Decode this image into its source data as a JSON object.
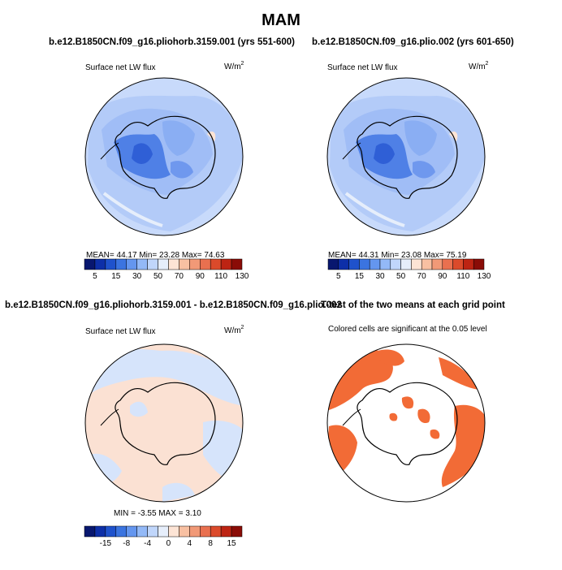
{
  "page": {
    "title": "MAM"
  },
  "panels": [
    {
      "title": "b.e12.B1850CN.f09_g16.pliohorb.3159.001 (yrs 551-600)",
      "left_label": "Surface net LW flux",
      "units_base": "W/m",
      "units_exp": "2",
      "stats_text": "MEAN=  44.17    Min=  23.28    Max=  74.63",
      "colorbar": {
        "colors": [
          "#08176f",
          "#0d2fa8",
          "#1f52cc",
          "#3b74e0",
          "#6496ef",
          "#93b9f7",
          "#c0d6fb",
          "#e6eefb",
          "#fde4d5",
          "#f8c0a2",
          "#f19977",
          "#e9704f",
          "#db4a2b",
          "#bd2413",
          "#8a0c07"
        ],
        "labels": [
          "5",
          "15",
          "30",
          "50",
          "70",
          "90",
          "110",
          "130"
        ]
      }
    },
    {
      "title": "b.e12.B1850CN.f09_g16.plio.002 (yrs 601-650)",
      "left_label": "Surface net LW flux",
      "units_base": "W/m",
      "units_exp": "2",
      "stats_text": "MEAN=  44.31    Min=  23.08    Max=  75.19",
      "colorbar": {
        "colors": [
          "#08176f",
          "#0d2fa8",
          "#1f52cc",
          "#3b74e0",
          "#6496ef",
          "#93b9f7",
          "#c0d6fb",
          "#e6eefb",
          "#fde4d5",
          "#f8c0a2",
          "#f19977",
          "#e9704f",
          "#db4a2b",
          "#bd2413",
          "#8a0c07"
        ],
        "labels": [
          "5",
          "15",
          "30",
          "50",
          "70",
          "90",
          "110",
          "130"
        ]
      }
    },
    {
      "title": "b.e12.B1850CN.f09_g16.pliohorb.3159.001 - b.e12.B1850CN.f09_g16.plio.002",
      "left_label": "Surface net LW flux",
      "units_base": "W/m",
      "units_exp": "2",
      "stats_text": "MIN =   -3.55  MAX =    3.10",
      "colorbar": {
        "colors": [
          "#08176f",
          "#0d2fa8",
          "#1f52cc",
          "#3b74e0",
          "#6496ef",
          "#93b9f7",
          "#c0d6fb",
          "#e6eefb",
          "#fde4d5",
          "#f8c0a2",
          "#f19977",
          "#e9704f",
          "#db4a2b",
          "#bd2413",
          "#8a0c07"
        ],
        "labels": [
          "-15",
          "-8",
          "-4",
          "0",
          "4",
          "8",
          "15"
        ]
      }
    },
    {
      "title": "T-test of the two means at each grid point",
      "subtitle": "Colored cells are significant at the 0.05 level"
    }
  ],
  "colors": {
    "ocean_base": "#c8dafb",
    "ocean_mid": "#a7c3f7",
    "ice_dark": "#3f74e3",
    "diff_neg": "#d6e4fb",
    "diff_pos": "#fbe1d3",
    "signif": "#f26b36",
    "coast": "#000000"
  },
  "chart_data": [
    {
      "type": "heatmap",
      "title": "b.e12.B1850CN.f09_g16.pliohorb.3159.001 (yrs 551-600)",
      "variable": "Surface net LW flux",
      "units": "W/m2",
      "mean": 44.17,
      "min": 23.28,
      "max": 74.63,
      "levels": [
        5,
        10,
        15,
        20,
        30,
        40,
        50,
        60,
        70,
        80,
        90,
        100,
        110,
        120,
        130
      ]
    },
    {
      "type": "heatmap",
      "title": "b.e12.B1850CN.f09_g16.plio.002 (yrs 601-650)",
      "variable": "Surface net LW flux",
      "units": "W/m2",
      "mean": 44.31,
      "min": 23.08,
      "max": 75.19,
      "levels": [
        5,
        10,
        15,
        20,
        30,
        40,
        50,
        60,
        70,
        80,
        90,
        100,
        110,
        120,
        130
      ]
    },
    {
      "type": "heatmap",
      "title": "b.e12.B1850CN.f09_g16.pliohorb.3159.001 - b.e12.B1850CN.f09_g16.plio.002",
      "variable": "Surface net LW flux",
      "units": "W/m2",
      "min": -3.55,
      "max": 3.1,
      "levels": [
        -15,
        -10,
        -8,
        -6,
        -4,
        -2,
        0,
        2,
        4,
        6,
        8,
        10,
        15
      ]
    },
    {
      "type": "heatmap",
      "title": "T-test of the two means at each grid point",
      "note": "Colored cells are significant at the 0.05 level",
      "significance_level": 0.05
    }
  ]
}
